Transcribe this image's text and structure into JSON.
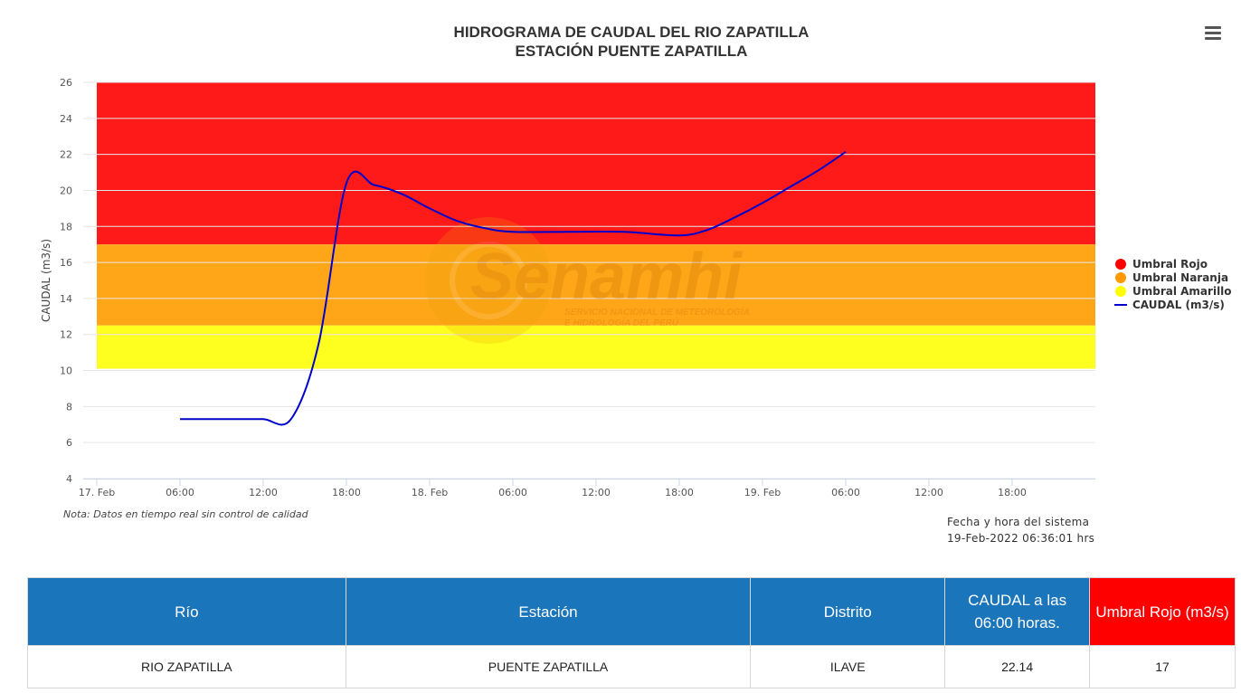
{
  "colors": {
    "red": "#ff1a1a",
    "orange": "#ffa518",
    "yellow": "#ffff1f",
    "line": "#0000cc",
    "header_blue": "#1b75bb",
    "header_red": "#ff0000"
  },
  "menu": {
    "icon": "hamburger-menu-icon"
  },
  "watermark": {
    "name": "Senamhi",
    "line1": "SERVICIO NACIONAL DE METEOROLOGÍA",
    "line2": "E HIDROLOGÍA DEL PERÚ"
  },
  "chart_data": {
    "type": "line",
    "title": "HIDROGRAMA DE CAUDAL DEL RIO ZAPATILLA",
    "subtitle": "ESTACIÓN PUENTE ZAPATILLA",
    "ylabel": "CAUDAL (m3/s)",
    "ylim": [
      4,
      26
    ],
    "yticks": [
      4,
      6,
      8,
      10,
      12,
      14,
      16,
      18,
      20,
      22,
      24,
      26
    ],
    "xlim": [
      "2022-02-17 00:00",
      "2022-02-20 00:00"
    ],
    "xticks": [
      {
        "t": "2022-02-17 00:00",
        "label": "17. Feb"
      },
      {
        "t": "2022-02-17 06:00",
        "label": "06:00"
      },
      {
        "t": "2022-02-17 12:00",
        "label": "12:00"
      },
      {
        "t": "2022-02-17 18:00",
        "label": "18:00"
      },
      {
        "t": "2022-02-18 00:00",
        "label": "18. Feb"
      },
      {
        "t": "2022-02-18 06:00",
        "label": "06:00"
      },
      {
        "t": "2022-02-18 12:00",
        "label": "12:00"
      },
      {
        "t": "2022-02-18 18:00",
        "label": "18:00"
      },
      {
        "t": "2022-02-19 00:00",
        "label": "19. Feb"
      },
      {
        "t": "2022-02-19 06:00",
        "label": "06:00"
      },
      {
        "t": "2022-02-19 12:00",
        "label": "12:00"
      },
      {
        "t": "2022-02-19 18:00",
        "label": "18:00"
      }
    ],
    "grid": true,
    "legend_position": "right",
    "bands": [
      {
        "name": "Umbral Rojo",
        "from": 17,
        "to": 26,
        "color": "#ff1a1a",
        "legend_color": "#ff0000"
      },
      {
        "name": "Umbral Naranja",
        "from": 12.5,
        "to": 17,
        "color": "#ffa518",
        "legend_color": "#ff9900"
      },
      {
        "name": "Umbral Amarillo",
        "from": 10.1,
        "to": 12.5,
        "color": "#ffff1f",
        "legend_color": "#ffff00"
      }
    ],
    "series": [
      {
        "name": "CAUDAL (m3/s)",
        "color": "#0000cc",
        "points": [
          [
            "2022-02-17 06:00",
            7.3
          ],
          [
            "2022-02-17 08:00",
            7.3
          ],
          [
            "2022-02-17 10:00",
            7.3
          ],
          [
            "2022-02-17 12:00",
            7.3
          ],
          [
            "2022-02-17 14:00",
            7.3
          ],
          [
            "2022-02-17 16:00",
            11.5
          ],
          [
            "2022-02-17 18:00",
            20.4
          ],
          [
            "2022-02-17 20:00",
            20.3
          ],
          [
            "2022-02-17 22:00",
            19.8
          ],
          [
            "2022-02-18 00:00",
            19.0
          ],
          [
            "2022-02-18 02:00",
            18.3
          ],
          [
            "2022-02-18 04:00",
            17.9
          ],
          [
            "2022-02-18 06:00",
            17.7
          ],
          [
            "2022-02-18 10:00",
            17.7
          ],
          [
            "2022-02-18 14:00",
            17.7
          ],
          [
            "2022-02-18 18:00",
            17.5
          ],
          [
            "2022-02-18 20:00",
            17.8
          ],
          [
            "2022-02-18 22:00",
            18.5
          ],
          [
            "2022-02-19 00:00",
            19.3
          ],
          [
            "2022-02-19 02:00",
            20.2
          ],
          [
            "2022-02-19 04:00",
            21.1
          ],
          [
            "2022-02-19 06:00",
            22.14
          ]
        ]
      }
    ]
  },
  "note": "Nota: Datos en tiempo real sin control de calidad",
  "system_time": {
    "label": "Fecha y hora del sistema",
    "value": "19-Feb-2022 06:36:01 hrs"
  },
  "table": {
    "headers": [
      "Río",
      "Estación",
      "Distrito",
      "CAUDAL a las 06:00 horas.",
      "Umbral Rojo (m3/s)"
    ],
    "row": [
      "RIO ZAPATILLA",
      "PUENTE ZAPATILLA",
      "ILAVE",
      "22.14",
      "17"
    ]
  }
}
